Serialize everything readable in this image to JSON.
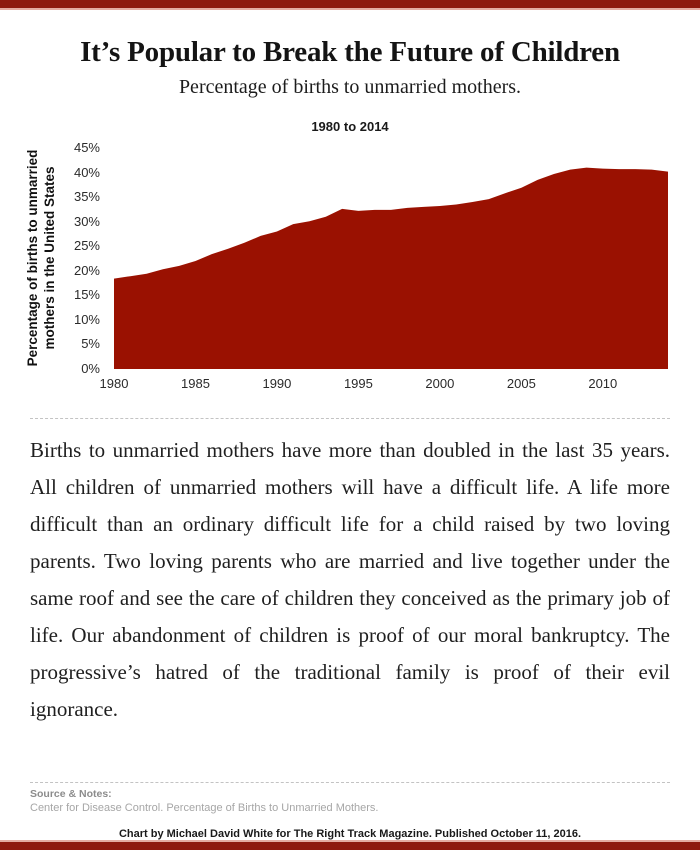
{
  "colors": {
    "accent": "#8D1A10",
    "accent_light": "#E3ACA3",
    "chart_fill": "#9A1101"
  },
  "header": {
    "title": "It’s Popular to Break the Future of Children",
    "subtitle": "Percentage of births to unmarried mothers."
  },
  "chart_data": {
    "type": "area",
    "title": "1980 to 2014",
    "ylabel": "Percentage of births to unmarried mothers in the United States",
    "ylabel_lines": [
      "Percentage of births to unmarried",
      "mothers in the United States"
    ],
    "fill_color": "#9A1101",
    "xlim": [
      1980,
      2014
    ],
    "ylim": [
      0,
      45
    ],
    "grid": false,
    "legend": false,
    "x": [
      1980,
      1981,
      1982,
      1983,
      1984,
      1985,
      1986,
      1987,
      1988,
      1989,
      1990,
      1991,
      1992,
      1993,
      1994,
      1995,
      1996,
      1997,
      1998,
      1999,
      2000,
      2001,
      2002,
      2003,
      2004,
      2005,
      2006,
      2007,
      2008,
      2009,
      2010,
      2011,
      2012,
      2013,
      2014
    ],
    "values": [
      18.4,
      18.9,
      19.4,
      20.3,
      21.0,
      22.0,
      23.4,
      24.5,
      25.7,
      27.1,
      28.0,
      29.5,
      30.1,
      31.0,
      32.6,
      32.2,
      32.4,
      32.4,
      32.8,
      33.0,
      33.2,
      33.5,
      34.0,
      34.6,
      35.8,
      36.9,
      38.5,
      39.7,
      40.6,
      41.0,
      40.8,
      40.7,
      40.7,
      40.6,
      40.2
    ],
    "yticks": [
      {
        "v": 0,
        "label": "0%"
      },
      {
        "v": 5,
        "label": "5%"
      },
      {
        "v": 10,
        "label": "10%"
      },
      {
        "v": 15,
        "label": "15%"
      },
      {
        "v": 20,
        "label": "20%"
      },
      {
        "v": 25,
        "label": "25%"
      },
      {
        "v": 30,
        "label": "30%"
      },
      {
        "v": 35,
        "label": "35%"
      },
      {
        "v": 40,
        "label": "40%"
      },
      {
        "v": 45,
        "label": "45%"
      }
    ],
    "xticks": [
      {
        "v": 1980,
        "label": "1980"
      },
      {
        "v": 1985,
        "label": "1985"
      },
      {
        "v": 1990,
        "label": "1990"
      },
      {
        "v": 1995,
        "label": "1995"
      },
      {
        "v": 2000,
        "label": "2000"
      },
      {
        "v": 2005,
        "label": "2005"
      },
      {
        "v": 2010,
        "label": "2010"
      }
    ]
  },
  "body": {
    "paragraph": "Births to unmarried mothers have more than doubled in the last 35 years. All children of unmarried mothers will have a difficult life. A life more difficult than an ordinary difficult life for a child raised by two loving parents. Two loving parents who are married and live together under the same roof and see the care of children they conceived as the primary job of life. Our abandonment of children is proof of our moral bankruptcy. The progressive’s hatred of the traditional family is proof of their evil ignorance.",
    "footnote_number": "35"
  },
  "footer": {
    "source_label": "Source & Notes:",
    "source_text": "Center for Disease Control. Percentage of Births to Unmarried Mothers.",
    "credit": "Chart by Michael David White for The Right Track Magazine. Published October 11, 2016."
  }
}
